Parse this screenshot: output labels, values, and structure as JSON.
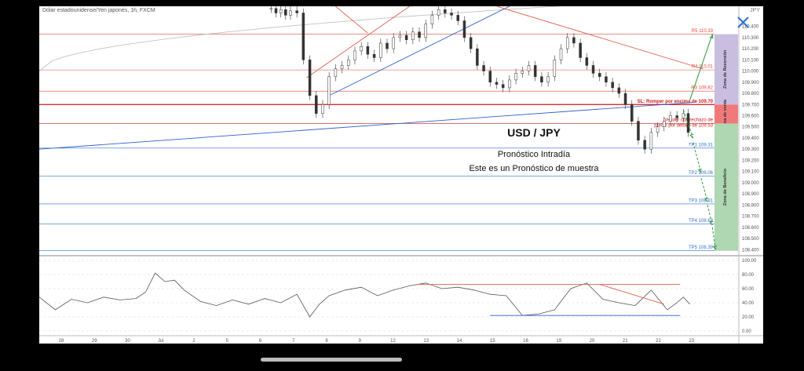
{
  "symbol_caption": "Dólar estadounidense/Yen japonés, 1h, FXCM",
  "corner_caption": "JPY",
  "overlay": {
    "title": "USD / JPY",
    "subtitle": "Pronóstico Intradía",
    "note": "Este es un Pronóstico de muestra"
  },
  "chart_data": [
    {
      "type": "line",
      "panel": "price",
      "title": "USD / JPY",
      "x_ticks": [
        "28",
        "29",
        "30",
        "Jul",
        "2",
        "5",
        "6",
        "7",
        "8",
        "9",
        "12",
        "13",
        "14",
        "15",
        "16",
        "19",
        "20",
        "21",
        "22",
        "23"
      ],
      "y_ticks": [
        "110.400",
        "110.300",
        "110.200",
        "110.100",
        "110.000",
        "109.900",
        "109.800",
        "109.700",
        "109.600",
        "109.500",
        "109.400",
        "109.300",
        "109.200",
        "109.100",
        "109.000",
        "108.900",
        "108.800",
        "108.700",
        "108.600",
        "108.500",
        "108.400"
      ],
      "ylim": [
        108.36,
        110.58
      ],
      "series": [
        {
          "type": "candlestick",
          "x": [
            7.2,
            7.35,
            7.5,
            7.65,
            7.8,
            8.0,
            8.2,
            8.4,
            8.6,
            8.8,
            9.0,
            9.2,
            9.4,
            9.6,
            9.8,
            10.0,
            10.2,
            10.4,
            10.6,
            10.8,
            11.0,
            11.2,
            11.4,
            11.6,
            11.8,
            12.0,
            12.2,
            12.4,
            12.6,
            12.8,
            13.0,
            13.2,
            13.4,
            13.6,
            13.8,
            14.0,
            14.2,
            14.4,
            14.6,
            14.8,
            15.0,
            15.2,
            15.4,
            15.6,
            15.8,
            16.0,
            16.2,
            16.4,
            16.6,
            16.8,
            17.0,
            17.2,
            17.4,
            17.6,
            17.8,
            18.0,
            18.2,
            18.4,
            18.6,
            18.8,
            19.0,
            19.2,
            19.4,
            19.6,
            19.8,
            20.0,
            20.15
          ],
          "close": [
            110.56,
            110.52,
            110.55,
            110.5,
            110.54,
            110.52,
            110.1,
            109.78,
            109.62,
            109.7,
            109.95,
            110.02,
            110.05,
            110.1,
            110.18,
            110.22,
            110.15,
            110.12,
            110.25,
            110.2,
            110.3,
            110.32,
            110.28,
            110.35,
            110.3,
            110.42,
            110.5,
            110.55,
            110.52,
            110.5,
            110.45,
            110.3,
            110.2,
            110.05,
            110.0,
            109.9,
            109.88,
            109.85,
            109.92,
            109.98,
            110.0,
            110.05,
            109.95,
            109.9,
            109.95,
            110.1,
            110.2,
            110.3,
            110.25,
            110.12,
            110.05,
            109.98,
            109.95,
            109.9,
            109.85,
            109.8,
            109.7,
            109.55,
            109.38,
            109.3,
            109.45,
            109.5,
            109.55,
            109.6,
            109.58,
            109.62,
            109.45
          ]
        },
        {
          "name": "",
          "type": "line",
          "x": [
            0.0,
            20.35
          ],
          "y": [
            109.3,
            109.72
          ]
        },
        {
          "name": "",
          "type": "line",
          "x": [
            9.0,
            14.6
          ],
          "y": [
            109.78,
            110.58
          ]
        },
        {
          "name": "",
          "type": "line",
          "x": [
            8.3,
            11.5
          ],
          "y": [
            109.94,
            110.58
          ]
        },
        {
          "name": "",
          "type": "line",
          "x": [
            9.2,
            10.2
          ],
          "y": [
            110.58,
            110.34
          ]
        },
        {
          "name": "",
          "type": "line",
          "x": [
            14.2,
            20.6
          ],
          "y": [
            110.58,
            110.02
          ]
        }
      ],
      "levels": [
        {
          "label": "R5 110.33",
          "y": 110.33,
          "color": "#e04a3a"
        },
        {
          "label": "R4 110.01",
          "y": 110.01,
          "color": "#e04a3a"
        },
        {
          "label": "R3 109.82",
          "y": 109.82,
          "color": "#e04a3a"
        },
        {
          "label": "SL: Romper por encima de 109.70",
          "y": 109.7,
          "color": "#d01818"
        },
        {
          "label": "Vender con rechazo de precio por debajo de 109.53",
          "y": 109.53,
          "color": "#d01818"
        },
        {
          "label": "TP1 109.31",
          "y": 109.31,
          "color": "#2f6fd0"
        },
        {
          "label": "TP2 109.06",
          "y": 109.06,
          "color": "#2f6fd0"
        },
        {
          "label": "TP3 108.81",
          "y": 108.81,
          "color": "#2f6fd0"
        },
        {
          "label": "TP4 108.63",
          "y": 108.63,
          "color": "#2f6fd0"
        },
        {
          "label": "TP5 108.39",
          "y": 108.39,
          "color": "#2f6fd0"
        }
      ],
      "zones": [
        {
          "label": "Zona de Reversión",
          "y": [
            109.7,
            110.33
          ],
          "color": "#c9bde0"
        },
        {
          "label": "Zona de venta",
          "y": [
            109.53,
            109.7
          ],
          "color": "#f07a7a"
        },
        {
          "label": "Zona de Beneficio",
          "y": [
            108.39,
            109.53
          ],
          "color": "#aed7b2"
        }
      ]
    },
    {
      "type": "line",
      "panel": "indicator",
      "y_ticks": [
        "100.00",
        "80.00",
        "60.00",
        "40.00",
        "20.00",
        "0.00"
      ],
      "ylim": [
        0,
        100
      ],
      "series": [
        {
          "x": [
            0.0,
            0.5,
            1.0,
            1.5,
            2.0,
            2.5,
            3.0,
            3.3,
            3.6,
            3.9,
            4.2,
            4.5,
            5.0,
            5.5,
            6.0,
            6.5,
            7.0,
            7.5,
            8.0,
            8.4,
            8.7,
            9.0,
            9.5,
            10.0,
            10.5,
            11.0,
            11.5,
            12.0,
            12.5,
            13.0,
            13.5,
            14.0,
            14.5,
            15.0,
            15.5,
            16.0,
            16.5,
            17.0,
            17.5,
            18.0,
            18.5,
            19.0,
            19.5,
            19.8,
            20.0,
            20.2
          ],
          "y": [
            48,
            30,
            45,
            40,
            48,
            44,
            46,
            55,
            82,
            70,
            72,
            58,
            42,
            36,
            44,
            38,
            46,
            40,
            52,
            20,
            38,
            50,
            58,
            62,
            50,
            58,
            64,
            68,
            60,
            62,
            58,
            52,
            50,
            22,
            24,
            30,
            60,
            68,
            45,
            40,
            36,
            58,
            30,
            40,
            48,
            38
          ]
        },
        {
          "name": "",
          "type": "line",
          "x": [
            11.7,
            19.9
          ],
          "y": [
            66,
            66
          ]
        },
        {
          "name": "",
          "type": "line",
          "x": [
            14.0,
            19.9
          ],
          "y": [
            22,
            22
          ]
        },
        {
          "name": "",
          "type": "line",
          "x": [
            17.4,
            19.4
          ],
          "y": [
            66,
            38
          ]
        }
      ]
    }
  ]
}
